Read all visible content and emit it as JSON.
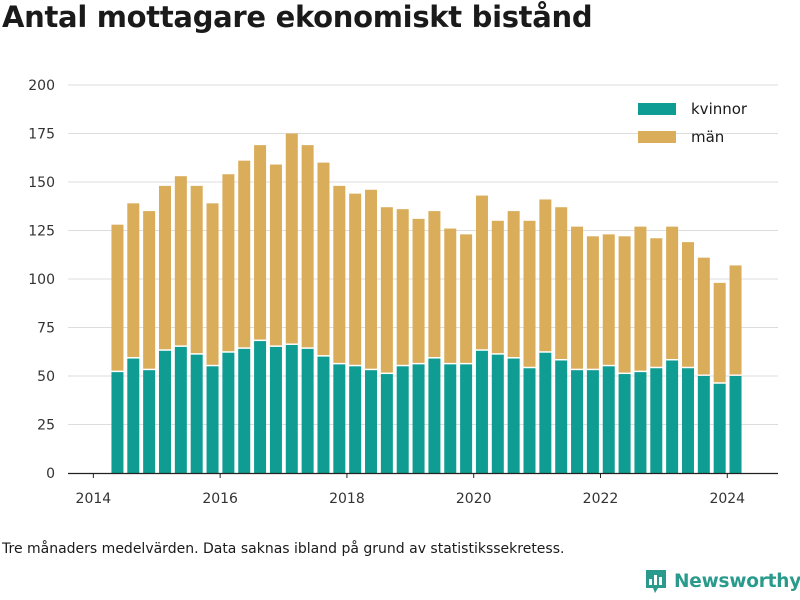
{
  "title": "Antal mottagare ekonomiskt bistånd",
  "note": "Tre månaders medelvärden. Data saknas ibland på grund av statistikssekretess.",
  "brand": {
    "name": "Newsworthy",
    "logo_icon": "newsworthy-chart-icon"
  },
  "colors": {
    "kvinnor": "#0f9d93",
    "man": "#d9ad5a",
    "grid": "#dddddd",
    "axis": "#222222"
  },
  "chart_data": {
    "type": "bar",
    "stacked": true,
    "title": "Antal mottagare ekonomiskt bistånd",
    "xlabel": "",
    "ylabel": "",
    "ylim": [
      0,
      200
    ],
    "yticks": [
      0,
      25,
      50,
      75,
      100,
      125,
      150,
      175,
      200
    ],
    "xticks": [
      "2014",
      "2016",
      "2018",
      "2020",
      "2022",
      "2024"
    ],
    "xlim": [
      2013.6,
      2024.8
    ],
    "grid": true,
    "legend_position": "top-right",
    "x": [
      2014.38,
      2014.63,
      2014.88,
      2015.13,
      2015.38,
      2015.63,
      2015.88,
      2016.13,
      2016.38,
      2016.63,
      2016.88,
      2017.13,
      2017.38,
      2017.63,
      2017.88,
      2018.13,
      2018.38,
      2018.63,
      2018.88,
      2019.13,
      2019.38,
      2019.63,
      2019.88,
      2020.13,
      2020.38,
      2020.63,
      2020.88,
      2021.13,
      2021.38,
      2021.63,
      2021.88,
      2022.13,
      2022.38,
      2022.63,
      2022.88,
      2023.13,
      2023.38,
      2023.63,
      2023.88,
      2024.13
    ],
    "series": [
      {
        "name": "kvinnor",
        "values": [
          52,
          59,
          53,
          63,
          65,
          61,
          55,
          62,
          64,
          68,
          65,
          66,
          64,
          60,
          56,
          55,
          53,
          51,
          55,
          56,
          59,
          56,
          56,
          63,
          61,
          59,
          54,
          62,
          58,
          53,
          53,
          55,
          51,
          52,
          54,
          58,
          54,
          50,
          46,
          50
        ]
      },
      {
        "name": "män",
        "values": [
          76,
          80,
          82,
          85,
          88,
          87,
          84,
          92,
          97,
          101,
          94,
          109,
          105,
          100,
          92,
          89,
          93,
          86,
          81,
          75,
          76,
          70,
          67,
          80,
          69,
          76,
          76,
          79,
          79,
          74,
          69,
          68,
          71,
          75,
          67,
          69,
          65,
          61,
          52,
          57
        ]
      }
    ]
  }
}
